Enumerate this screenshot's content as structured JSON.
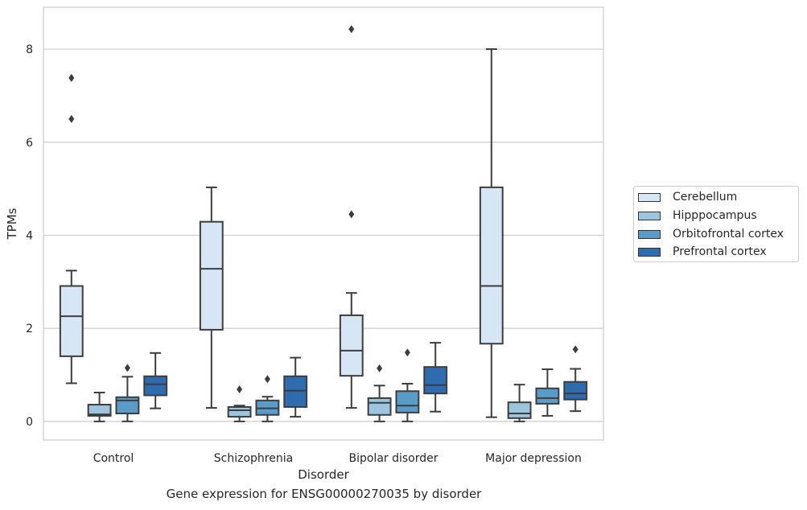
{
  "caption": "Gene expression for ENSG00000270035 by disorder",
  "chart_data": {
    "type": "box",
    "xlabel": "Disorder",
    "ylabel": "TPMs",
    "categories": [
      "Control",
      "Schizophrenia",
      "Bipolar disorder",
      "Major depression"
    ],
    "ylim": [
      -0.4,
      8.9
    ],
    "yticks": [
      "0",
      "2",
      "4",
      "6",
      "8"
    ],
    "grid": "horizontal",
    "legend_position": "right",
    "series": [
      {
        "name": "Cerebellum",
        "color": "#d7e6f4",
        "boxes": [
          {
            "whislo": 0.82,
            "q1": 1.4,
            "med": 2.26,
            "q3": 2.91,
            "whishi": 3.24,
            "fliers": [
              6.5,
              7.38
            ]
          },
          {
            "whislo": 0.29,
            "q1": 1.97,
            "med": 3.28,
            "q3": 4.29,
            "whishi": 5.03,
            "fliers": []
          },
          {
            "whislo": 0.29,
            "q1": 0.98,
            "med": 1.52,
            "q3": 2.28,
            "whishi": 2.76,
            "fliers": [
              4.45,
              8.43
            ]
          },
          {
            "whislo": 0.09,
            "q1": 1.67,
            "med": 2.91,
            "q3": 5.03,
            "whishi": 8.0,
            "fliers": []
          }
        ]
      },
      {
        "name": "Hipppocampus",
        "color": "#9dc5e0",
        "boxes": [
          {
            "whislo": 0.0,
            "q1": 0.12,
            "med": 0.15,
            "q3": 0.36,
            "whishi": 0.62,
            "fliers": []
          },
          {
            "whislo": 0.0,
            "q1": 0.1,
            "med": 0.24,
            "q3": 0.31,
            "whishi": 0.34,
            "fliers": [
              0.69
            ]
          },
          {
            "whislo": 0.0,
            "q1": 0.14,
            "med": 0.4,
            "q3": 0.5,
            "whishi": 0.77,
            "fliers": [
              1.14
            ]
          },
          {
            "whislo": 0.0,
            "q1": 0.07,
            "med": 0.17,
            "q3": 0.41,
            "whishi": 0.79,
            "fliers": []
          }
        ]
      },
      {
        "name": "Orbitofrontal cortex",
        "color": "#5a9cc9",
        "boxes": [
          {
            "whislo": 0.0,
            "q1": 0.17,
            "med": 0.45,
            "q3": 0.52,
            "whishi": 0.96,
            "fliers": [
              1.15
            ]
          },
          {
            "whislo": 0.0,
            "q1": 0.14,
            "med": 0.28,
            "q3": 0.45,
            "whishi": 0.53,
            "fliers": [
              0.91
            ]
          },
          {
            "whislo": 0.0,
            "q1": 0.19,
            "med": 0.34,
            "q3": 0.65,
            "whishi": 0.81,
            "fliers": [
              1.48
            ]
          },
          {
            "whislo": 0.12,
            "q1": 0.38,
            "med": 0.5,
            "q3": 0.71,
            "whishi": 1.12,
            "fliers": []
          }
        ]
      },
      {
        "name": "Prefrontal cortex",
        "color": "#2d6daf",
        "boxes": [
          {
            "whislo": 0.28,
            "q1": 0.56,
            "med": 0.8,
            "q3": 0.97,
            "whishi": 1.47,
            "fliers": []
          },
          {
            "whislo": 0.1,
            "q1": 0.31,
            "med": 0.66,
            "q3": 0.97,
            "whishi": 1.37,
            "fliers": []
          },
          {
            "whislo": 0.21,
            "q1": 0.6,
            "med": 0.78,
            "q3": 1.17,
            "whishi": 1.69,
            "fliers": []
          },
          {
            "whislo": 0.22,
            "q1": 0.47,
            "med": 0.6,
            "q3": 0.85,
            "whishi": 1.13,
            "fliers": [
              1.55
            ]
          }
        ]
      }
    ]
  }
}
